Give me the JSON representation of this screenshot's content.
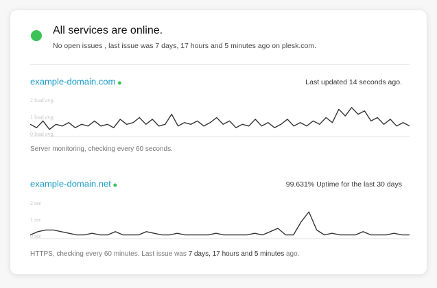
{
  "header": {
    "title": "All services are online.",
    "subtitle": "No open issues , last issue was 7 days, 17 hours and 5 minutes ago on plesk.com."
  },
  "monitors": [
    {
      "name": "example-domain.com",
      "status": "Last updated 14 seconds ago.",
      "chart": {
        "type": "line",
        "color": "#333333",
        "values": [
          0.6,
          0.4,
          0.8,
          0.3,
          0.6,
          0.5,
          0.7,
          0.4,
          0.6,
          0.5,
          0.8,
          0.5,
          0.6,
          0.4,
          0.9,
          0.6,
          0.7,
          1.0,
          0.6,
          0.9,
          0.5,
          0.6,
          1.2,
          0.5,
          0.7,
          0.6,
          0.8,
          0.5,
          0.7,
          1.0,
          0.6,
          0.8,
          0.4,
          0.6,
          0.5,
          0.9,
          0.5,
          0.7,
          0.4,
          0.6,
          0.9,
          0.5,
          0.7,
          0.5,
          0.8,
          0.6,
          1.0,
          0.7,
          1.5,
          1.1,
          1.6,
          1.2,
          1.4,
          0.8,
          1.0,
          0.6,
          0.9,
          0.5,
          0.7,
          0.5
        ],
        "ylim": [
          0,
          2
        ],
        "yticks": [
          {
            "value": 0,
            "label": "0 load avg."
          },
          {
            "value": 1,
            "label": "1 load avg."
          },
          {
            "value": 2,
            "label": "2 load avg."
          }
        ]
      },
      "footer": [
        "Server monitoring, checking every 60 seconds."
      ]
    },
    {
      "name": "example-domain.net",
      "status": "99.631% Uptime for the last 30 days",
      "chart": {
        "type": "line",
        "color": "#333333",
        "values": [
          0.1,
          0.3,
          0.4,
          0.4,
          0.3,
          0.2,
          0.1,
          0.1,
          0.2,
          0.1,
          0.1,
          0.3,
          0.1,
          0.1,
          0.1,
          0.3,
          0.2,
          0.1,
          0.1,
          0.2,
          0.1,
          0.1,
          0.1,
          0.1,
          0.2,
          0.1,
          0.1,
          0.1,
          0.1,
          0.2,
          0.1,
          0.3,
          0.5,
          0.1,
          0.1,
          0.9,
          1.5,
          0.4,
          0.1,
          0.2,
          0.1,
          0.1,
          0.1,
          0.3,
          0.1,
          0.1,
          0.1,
          0.2,
          0.1,
          0.1
        ],
        "ylim": [
          0,
          2
        ],
        "yticks": [
          {
            "value": 0,
            "label": "0 sec"
          },
          {
            "value": 1,
            "label": "1 sec"
          },
          {
            "value": 2,
            "label": "2 sec"
          }
        ]
      },
      "footer": [
        "HTTPS, checking every 60 minutes. Last issue was ",
        "7 days, 17 hours and 5 minutes",
        " ago."
      ]
    }
  ]
}
